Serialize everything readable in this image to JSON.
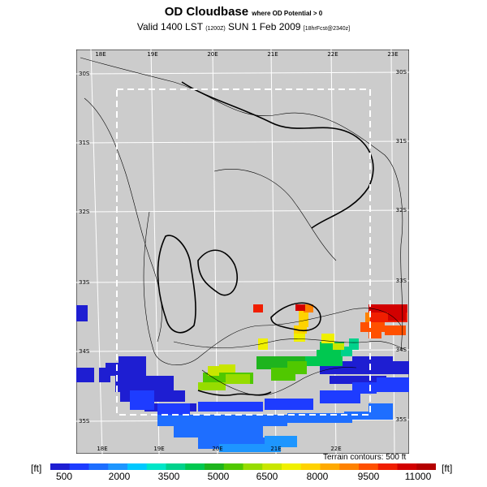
{
  "title": {
    "main": "OD Cloudbase",
    "qualifier": "where OD Potential > 0",
    "valid_prefix": "Valid 1400 LST",
    "valid_utc": "(1200Z)",
    "valid_date": "SUN 1 Feb 2009",
    "forecast": "[18hrFcst@2340z]"
  },
  "map": {
    "lon_labels_top": [
      "18E",
      "19E",
      "20E",
      "21E",
      "22E",
      "23E"
    ],
    "lon_labels_bottom": [
      "18E",
      "19E",
      "20E",
      "21E",
      "22E"
    ],
    "lat_labels_left": [
      "30S",
      "31S",
      "32S",
      "33S",
      "34S",
      "35S"
    ],
    "lat_labels_right": [
      "30S",
      "31S",
      "32S",
      "33S",
      "34S",
      "35S"
    ],
    "land_color": "#cccccc",
    "grid_color": "#ffffff"
  },
  "legend": {
    "unit_left": "[ft]",
    "unit_right": "[ft]",
    "terrain_note": "Terrain contours: 500 ft",
    "ticks": [
      "500",
      "2000",
      "3500",
      "5000",
      "6500",
      "8000",
      "9500",
      "11000"
    ],
    "colors": [
      "#1e1ed2",
      "#1e3cff",
      "#1e6eff",
      "#1e96ff",
      "#00c8ff",
      "#00e6c8",
      "#00d28c",
      "#00c850",
      "#1eb41e",
      "#50c800",
      "#96dc00",
      "#c8e600",
      "#f0f000",
      "#ffd200",
      "#ffaa00",
      "#ff8200",
      "#ff5000",
      "#f01e00",
      "#d20000",
      "#b40000"
    ]
  }
}
